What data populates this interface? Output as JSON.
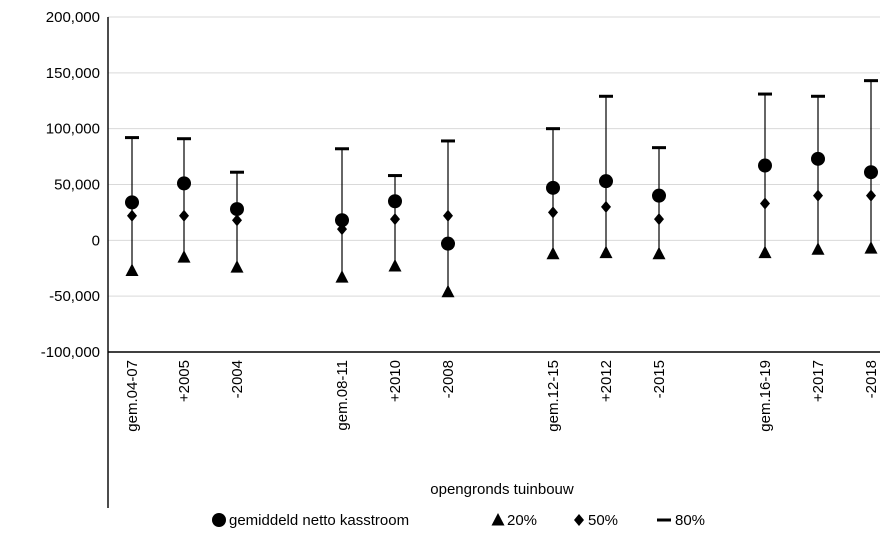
{
  "chart_data": {
    "type": "scatter",
    "xlabel": "opengronds tuinbouw",
    "ylim": [
      -100000,
      200000
    ],
    "yticks": [
      200000,
      150000,
      100000,
      50000,
      0,
      -50000,
      -100000
    ],
    "ytick_labels": [
      "200,000",
      "150,000",
      "100,000",
      "50,000",
      "0",
      "-50,000",
      "-100,000"
    ],
    "grid": true,
    "legend_position": "bottom",
    "categories": [
      "gem.04-07",
      "+2005",
      "-2004",
      "gem.08-11",
      "+2010",
      "-2008",
      "gem.12-15",
      "+2012",
      "-2015",
      "gem.16-19",
      "+2017",
      "-2018"
    ],
    "series": [
      {
        "name": "gemiddeld netto kasstroom",
        "marker": "circle",
        "values": [
          34000,
          51000,
          28000,
          18000,
          35000,
          -3000,
          47000,
          53000,
          40000,
          67000,
          73000,
          61000
        ]
      },
      {
        "name": "20%",
        "marker": "triangle",
        "values": [
          -27000,
          -15000,
          -24000,
          -33000,
          -23000,
          -46000,
          -12000,
          -11000,
          -12000,
          -11000,
          -8000,
          -7000
        ]
      },
      {
        "name": "50%",
        "marker": "diamond",
        "values": [
          22000,
          22000,
          18000,
          10000,
          19000,
          22000,
          25000,
          30000,
          19000,
          33000,
          40000,
          40000
        ]
      },
      {
        "name": "80%",
        "marker": "dash",
        "values": [
          92000,
          91000,
          61000,
          82000,
          58000,
          89000,
          100000,
          129000,
          83000,
          131000,
          129000,
          143000
        ]
      }
    ]
  }
}
